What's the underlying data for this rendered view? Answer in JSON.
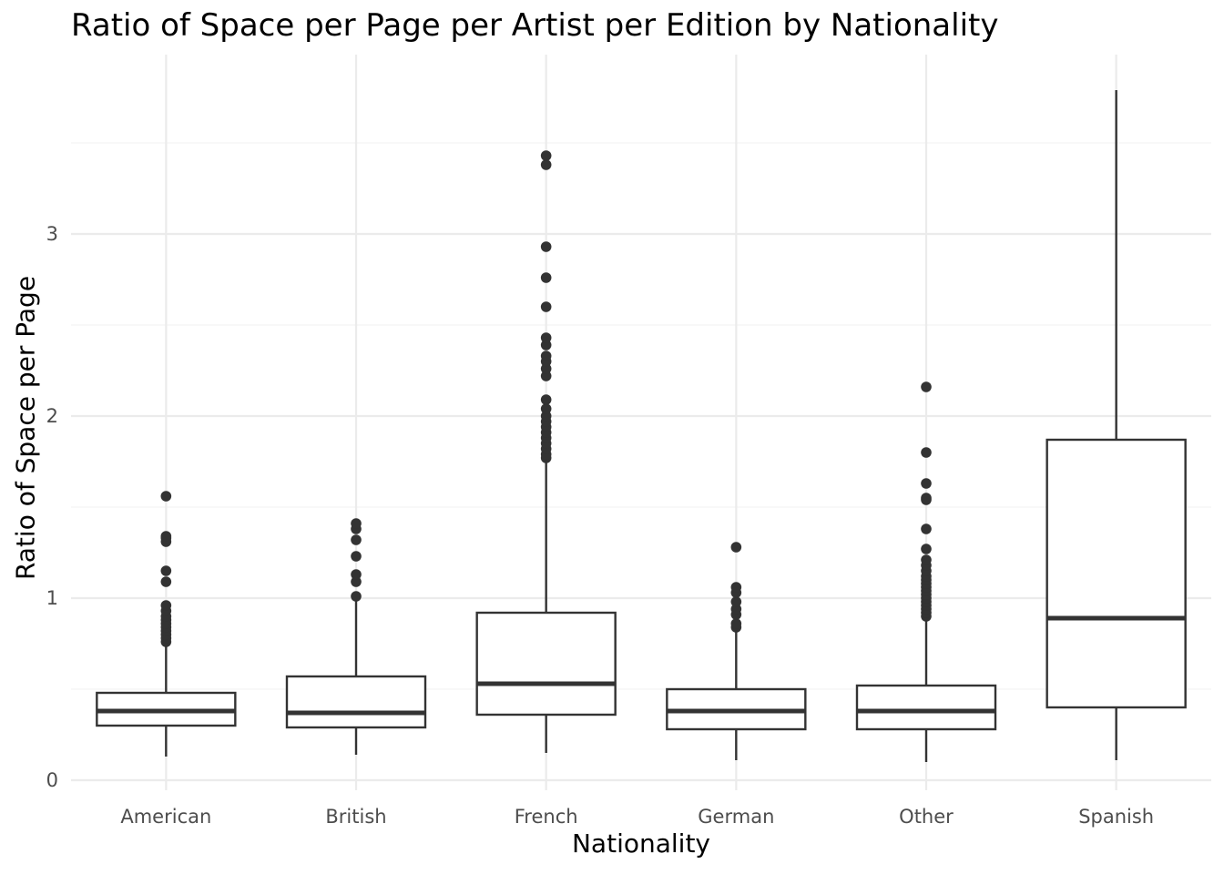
{
  "chart_data": {
    "type": "box",
    "title": "Ratio of Space per Page per Artist per Edition by Nationality",
    "xlabel": "Nationality",
    "ylabel": "Ratio of Space per Page",
    "ylim": [
      -0.06,
      4.0
    ],
    "yticks": [
      0,
      1,
      2,
      3
    ],
    "grid": true,
    "colors": {
      "box_stroke": "#333333",
      "grid_major": "#ebebeb",
      "grid_minor": "#f3f3f3",
      "outlier": "#333333"
    },
    "categories": [
      "American",
      "British",
      "French",
      "German",
      "Other",
      "Spanish"
    ],
    "boxes": [
      {
        "category": "American",
        "whisker_low": 0.13,
        "q1": 0.3,
        "median": 0.38,
        "q3": 0.48,
        "whisker_high": 0.74,
        "outliers": [
          0.76,
          0.78,
          0.8,
          0.82,
          0.84,
          0.86,
          0.88,
          0.9,
          0.93,
          0.96,
          1.09,
          1.15,
          1.31,
          1.33,
          1.34,
          1.56
        ]
      },
      {
        "category": "British",
        "whisker_low": 0.14,
        "q1": 0.29,
        "median": 0.37,
        "q3": 0.57,
        "whisker_high": 1.0,
        "outliers": [
          1.01,
          1.09,
          1.13,
          1.23,
          1.32,
          1.38,
          1.41
        ]
      },
      {
        "category": "French",
        "whisker_low": 0.15,
        "q1": 0.36,
        "median": 0.53,
        "q3": 0.92,
        "whisker_high": 1.75,
        "outliers": [
          1.77,
          1.79,
          1.82,
          1.85,
          1.88,
          1.91,
          1.94,
          1.97,
          2.0,
          2.04,
          2.09,
          2.22,
          2.26,
          2.3,
          2.33,
          2.39,
          2.43,
          2.6,
          2.76,
          2.93,
          3.38,
          3.43
        ]
      },
      {
        "category": "German",
        "whisker_low": 0.11,
        "q1": 0.28,
        "median": 0.38,
        "q3": 0.5,
        "whisker_high": 0.82,
        "outliers": [
          0.84,
          0.86,
          0.91,
          0.94,
          0.98,
          1.03,
          1.06,
          1.28
        ]
      },
      {
        "category": "Other",
        "whisker_low": 0.1,
        "q1": 0.28,
        "median": 0.38,
        "q3": 0.52,
        "whisker_high": 0.89,
        "outliers": [
          0.9,
          0.92,
          0.94,
          0.96,
          0.98,
          1.0,
          1.02,
          1.04,
          1.06,
          1.08,
          1.1,
          1.12,
          1.15,
          1.18,
          1.21,
          1.27,
          1.38,
          1.54,
          1.55,
          1.63,
          1.8,
          2.16
        ]
      },
      {
        "category": "Spanish",
        "whisker_low": 0.11,
        "q1": 0.4,
        "median": 0.89,
        "q3": 1.87,
        "whisker_high": 3.79,
        "outliers": []
      }
    ]
  }
}
